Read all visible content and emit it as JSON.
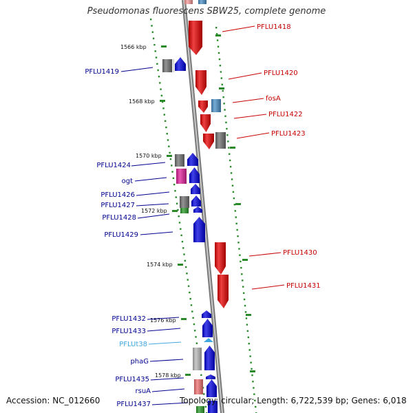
{
  "title": "Pseudomonas fluorescens SBW25, complete genome",
  "footer": {
    "accession": "Accession: NC_012660",
    "topology": "Topology: circular; Length: 6,722,539 bp; Genes: 6,018"
  },
  "colors": {
    "forward_strand": "#0000e0",
    "reverse_strand": "#e80000",
    "gray_feature": "#707070",
    "light_blue_feature": "#4a90c8",
    "magenta_feature": "#e0209a",
    "green_feature": "#2a9a2a",
    "trna_cyan": "#40a8e0",
    "backbone": "#909090",
    "tick_green": "#2a8a2a"
  },
  "scale": {
    "unit": "kbp",
    "ticks": [
      {
        "kbp": 1566,
        "label": "1566 kbp"
      },
      {
        "kbp": 1568,
        "label": "1568 kbp"
      },
      {
        "kbp": 1570,
        "label": "1570 kbp"
      },
      {
        "kbp": 1572,
        "label": "1572 kbp"
      },
      {
        "kbp": 1574,
        "label": "1574 kbp"
      },
      {
        "kbp": 1576,
        "label": "1576 kbp"
      },
      {
        "kbp": 1578,
        "label": "1578 kbp"
      }
    ]
  },
  "genes_reverse": [
    {
      "name": "PFLU1418",
      "label": "PFLU1418"
    },
    {
      "name": "PFLU1420",
      "label": "PFLU1420"
    },
    {
      "name": "fosA",
      "label": "fosA"
    },
    {
      "name": "PFLU1422",
      "label": "PFLU1422"
    },
    {
      "name": "PFLU1423",
      "label": "PFLU1423"
    },
    {
      "name": "PFLU1430",
      "label": "PFLU1430"
    },
    {
      "name": "PFLU1431",
      "label": "PFLU1431"
    }
  ],
  "genes_forward": [
    {
      "name": "PFLU1419",
      "label": "PFLU1419"
    },
    {
      "name": "PFLU1424",
      "label": "PFLU1424"
    },
    {
      "name": "ogt",
      "label": "ogt"
    },
    {
      "name": "PFLU1426",
      "label": "PFLU1426"
    },
    {
      "name": "PFLU1427",
      "label": "PFLU1427"
    },
    {
      "name": "PFLU1428",
      "label": "PFLU1428"
    },
    {
      "name": "PFLU1429",
      "label": "PFLU1429"
    },
    {
      "name": "PFLU1432",
      "label": "PFLU1432"
    },
    {
      "name": "PFLU1433",
      "label": "PFLU1433"
    },
    {
      "name": "PFLUt38",
      "label": "PFLUt38"
    },
    {
      "name": "phaG",
      "label": "phaG"
    },
    {
      "name": "PFLU1435",
      "label": "PFLU1435"
    },
    {
      "name": "rsuA",
      "label": "rsuA"
    },
    {
      "name": "PFLU1437",
      "label": "PFLU1437"
    }
  ]
}
